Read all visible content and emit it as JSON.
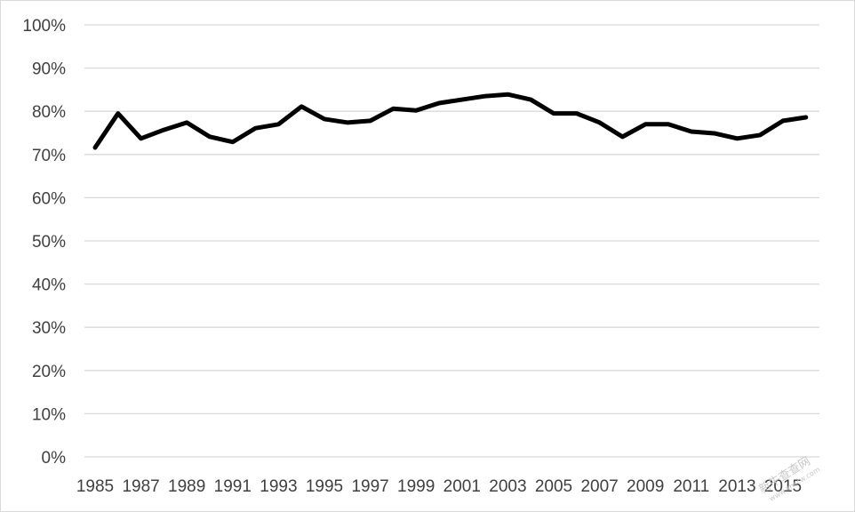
{
  "chart_data": {
    "type": "line",
    "title": "",
    "xlabel": "",
    "ylabel": "",
    "x": [
      1985,
      1986,
      1987,
      1988,
      1989,
      1990,
      1991,
      1992,
      1993,
      1994,
      1995,
      1996,
      1997,
      1998,
      1999,
      2000,
      2001,
      2002,
      2003,
      2004,
      2005,
      2006,
      2007,
      2008,
      2009,
      2010,
      2011,
      2012,
      2013,
      2014,
      2015,
      2016
    ],
    "x_tick_labels": [
      "1985",
      "1987",
      "1989",
      "1991",
      "1993",
      "1995",
      "1997",
      "1999",
      "2001",
      "2003",
      "2005",
      "2007",
      "2009",
      "2011",
      "2013",
      "2015"
    ],
    "series": [
      {
        "values": [
          0.716,
          0.795,
          0.737,
          0.757,
          0.774,
          0.741,
          0.729,
          0.761,
          0.77,
          0.811,
          0.782,
          0.774,
          0.778,
          0.806,
          0.802,
          0.819,
          0.827,
          0.835,
          0.839,
          0.827,
          0.795,
          0.795,
          0.774,
          0.741,
          0.77,
          0.77,
          0.753,
          0.749,
          0.737,
          0.745,
          0.778,
          0.786
        ],
        "color": "#000000"
      }
    ],
    "ylim": [
      0,
      1
    ],
    "y_ticks": [
      0,
      0.1,
      0.2,
      0.3,
      0.4,
      0.5,
      0.6,
      0.7,
      0.8,
      0.9,
      1.0
    ],
    "y_tick_labels": [
      "0%",
      "10%",
      "20%",
      "30%",
      "40%",
      "50%",
      "60%",
      "70%",
      "80%",
      "90%",
      "100%"
    ],
    "grid": true,
    "legend": "none",
    "colors": {
      "line": "#000000",
      "grid": "#d9d9d9",
      "text": "#404040"
    }
  },
  "watermark": {
    "text": "新牛查查网",
    "subtext": "www.xnccw.com"
  }
}
